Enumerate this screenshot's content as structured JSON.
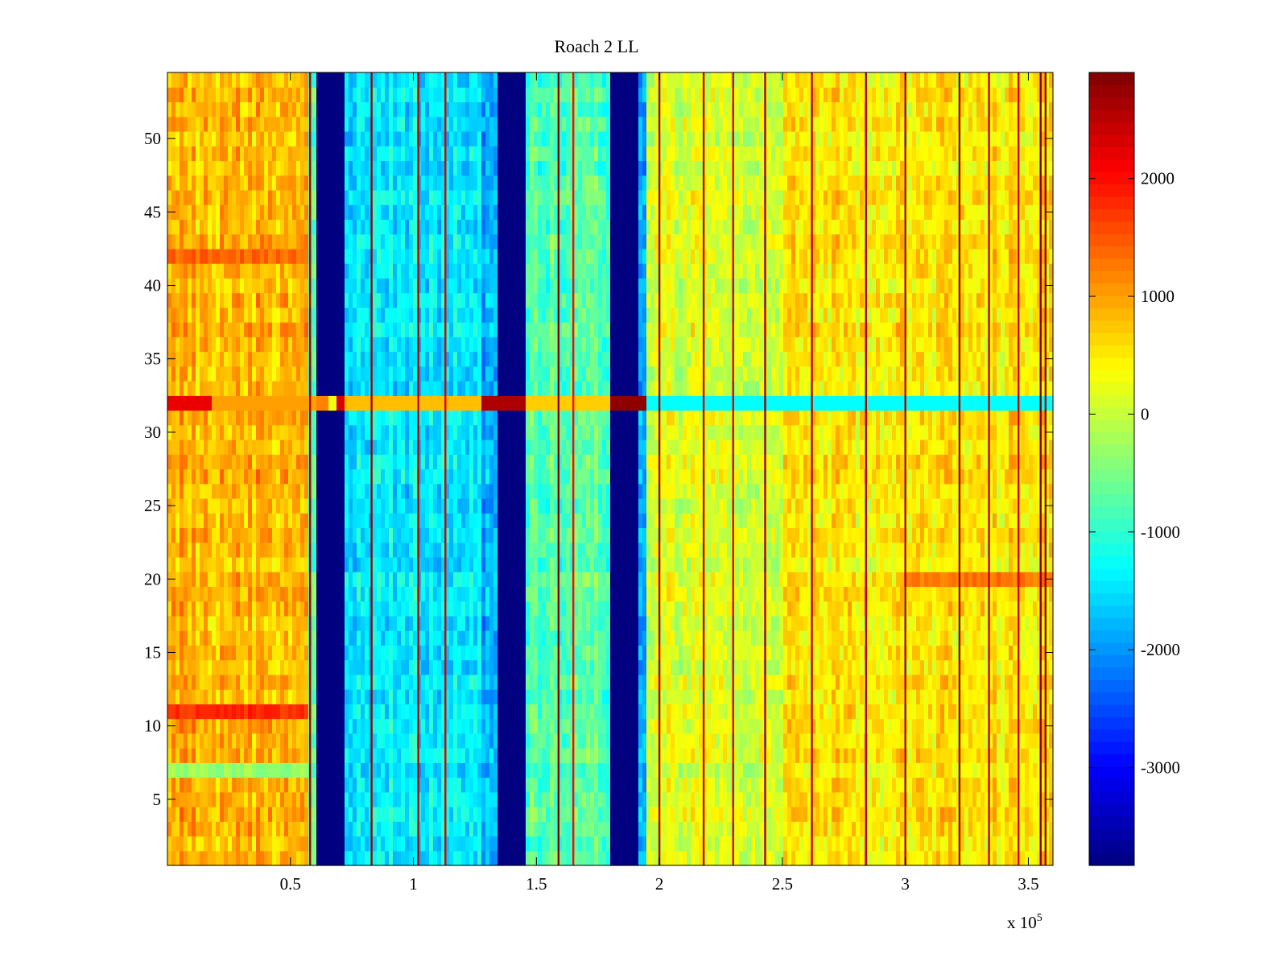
{
  "chart_data": {
    "type": "heatmap",
    "title": "Roach 2 LL",
    "xlabel": "",
    "ylabel": "",
    "x_exponent_label": {
      "base": "x 10",
      "exponent": "5"
    },
    "xlim": [
      0,
      360000
    ],
    "ylim": [
      0.5,
      54.5
    ],
    "x_ticks": [
      {
        "value": 50000,
        "label": "0.5"
      },
      {
        "value": 100000,
        "label": "1"
      },
      {
        "value": 150000,
        "label": "1.5"
      },
      {
        "value": 200000,
        "label": "2"
      },
      {
        "value": 250000,
        "label": "2.5"
      },
      {
        "value": 300000,
        "label": "3"
      },
      {
        "value": 350000,
        "label": "3.5"
      }
    ],
    "y_ticks": [
      {
        "value": 5,
        "label": "5"
      },
      {
        "value": 10,
        "label": "10"
      },
      {
        "value": 15,
        "label": "15"
      },
      {
        "value": 20,
        "label": "20"
      },
      {
        "value": 25,
        "label": "25"
      },
      {
        "value": 30,
        "label": "30"
      },
      {
        "value": 35,
        "label": "35"
      },
      {
        "value": 40,
        "label": "40"
      },
      {
        "value": 45,
        "label": "45"
      },
      {
        "value": 50,
        "label": "50"
      }
    ],
    "colormap": "jet",
    "clim": [
      -3830,
      2900
    ],
    "colorbar_ticks": [
      {
        "value": 2000,
        "label": "2000"
      },
      {
        "value": 1000,
        "label": "1000"
      },
      {
        "value": 0,
        "label": "0"
      },
      {
        "value": -1000,
        "label": "-1000"
      },
      {
        "value": -2000,
        "label": "-2000"
      },
      {
        "value": -3000,
        "label": "-3000"
      }
    ],
    "segments": [
      {
        "x_start": 0,
        "x_end": 57000,
        "mean": 850
      },
      {
        "x_start": 57000,
        "x_end": 61000,
        "mean": -700
      },
      {
        "x_start": 61000,
        "x_end": 72000,
        "mean": -3830
      },
      {
        "x_start": 72000,
        "x_end": 75000,
        "mean": -1600
      },
      {
        "x_start": 75000,
        "x_end": 127000,
        "mean": -1450
      },
      {
        "x_start": 127000,
        "x_end": 134000,
        "mean": -1900
      },
      {
        "x_start": 134000,
        "x_end": 145000,
        "mean": -3830
      },
      {
        "x_start": 145000,
        "x_end": 180000,
        "mean": -750
      },
      {
        "x_start": 180000,
        "x_end": 192000,
        "mean": -3830
      },
      {
        "x_start": 192000,
        "x_end": 195000,
        "mean": -1700
      },
      {
        "x_start": 195000,
        "x_end": 250000,
        "mean": 150
      },
      {
        "x_start": 250000,
        "x_end": 360000,
        "mean": 500
      }
    ],
    "row_32_values": [
      {
        "x_start": 0,
        "x_end": 18000,
        "value": 2200
      },
      {
        "x_start": 18000,
        "x_end": 61000,
        "value": 1000
      },
      {
        "x_start": 61000,
        "x_end": 65000,
        "value": 1200
      },
      {
        "x_start": 65000,
        "x_end": 69000,
        "value": 300
      },
      {
        "x_start": 69000,
        "x_end": 72000,
        "value": 2300
      },
      {
        "x_start": 72000,
        "x_end": 127000,
        "value": 800
      },
      {
        "x_start": 127000,
        "x_end": 145000,
        "value": 2600
      },
      {
        "x_start": 145000,
        "x_end": 180000,
        "value": 700
      },
      {
        "x_start": 180000,
        "x_end": 195000,
        "value": 2800
      },
      {
        "x_start": 195000,
        "x_end": 360000,
        "value": -1300
      }
    ],
    "notable_columns": [
      {
        "x": 58000,
        "value": 2600
      },
      {
        "x": 83000,
        "value": 2700
      },
      {
        "x": 102000,
        "value": 2400
      },
      {
        "x": 113000,
        "value": 2300
      },
      {
        "x": 159000,
        "value": 2800
      },
      {
        "x": 165000,
        "value": 2000
      },
      {
        "x": 200000,
        "value": 2600
      },
      {
        "x": 218000,
        "value": 2400
      },
      {
        "x": 230000,
        "value": 2200
      },
      {
        "x": 243000,
        "value": 2700
      },
      {
        "x": 262000,
        "value": 2500
      },
      {
        "x": 284000,
        "value": 2600
      },
      {
        "x": 300000,
        "value": 2600
      },
      {
        "x": 322000,
        "value": 2700
      },
      {
        "x": 334000,
        "value": 2400
      },
      {
        "x": 346000,
        "value": 2300
      },
      {
        "x": 355000,
        "value": 2900
      },
      {
        "x": 357000,
        "value": 2800
      }
    ],
    "notable_rows": [
      {
        "row": 11,
        "x_start": 0,
        "x_end": 57000,
        "value": 1800
      },
      {
        "row": 42,
        "x_start": 0,
        "x_end": 57000,
        "value": 1400
      },
      {
        "row": 7,
        "x_start": 0,
        "x_end": 57000,
        "value": -300
      },
      {
        "row": 20,
        "x_start": 300000,
        "x_end": 360000,
        "value": 1300
      }
    ]
  }
}
